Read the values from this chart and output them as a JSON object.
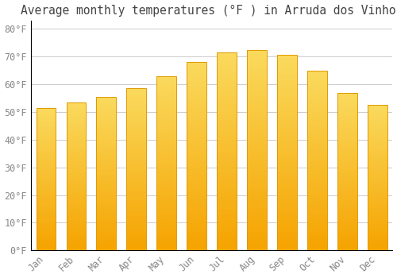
{
  "title": "Average monthly temperatures (°F ) in Arruda dos Vinhos",
  "months": [
    "Jan",
    "Feb",
    "Mar",
    "Apr",
    "May",
    "Jun",
    "Jul",
    "Aug",
    "Sep",
    "Oct",
    "Nov",
    "Dec"
  ],
  "values": [
    51.5,
    53.5,
    55.5,
    58.5,
    63,
    68,
    71.5,
    72.5,
    70.5,
    65,
    57,
    52.5
  ],
  "bar_color_top": "#FADA5E",
  "bar_color_bottom": "#F5A300",
  "bar_edge_color": "#E09A00",
  "background_color": "#FFFFFF",
  "grid_color": "#CCCCCC",
  "ylim": [
    0,
    83
  ],
  "title_fontsize": 10.5,
  "tick_fontsize": 8.5,
  "font_family": "monospace",
  "tick_color": "#888888",
  "title_color": "#444444",
  "spine_color": "#000000"
}
